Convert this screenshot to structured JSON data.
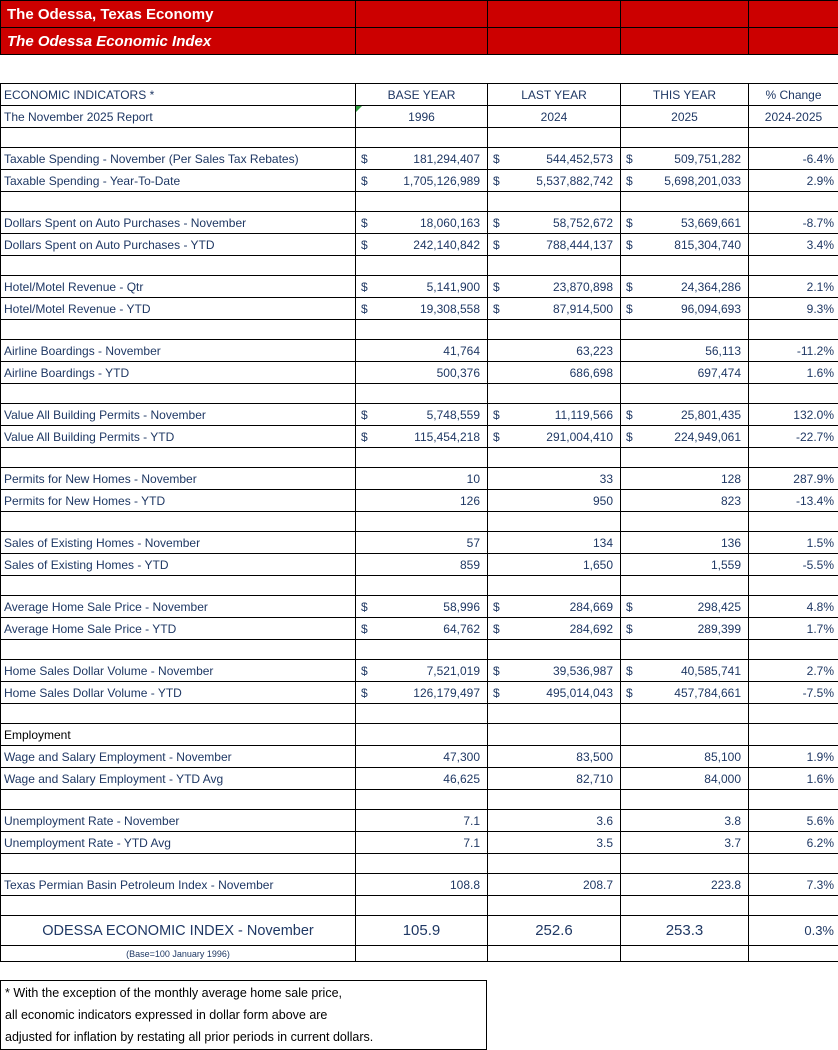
{
  "colors": {
    "text_navy": "#1F3864",
    "banner_red": "#CC0000",
    "border": "#000000"
  },
  "banner": {
    "title": "The Odessa, Texas Economy",
    "subtitle": "The Odessa Economic Index"
  },
  "header": {
    "indicators_label": "ECONOMIC INDICATORS *",
    "report_label": "The November 2025 Report",
    "year_columns": [
      {
        "label": "BASE YEAR",
        "year": "1996"
      },
      {
        "label": "LAST YEAR",
        "year": "2024"
      },
      {
        "label": "THIS YEAR",
        "year": "2025"
      },
      {
        "label": "% Change",
        "year": "2024-2025"
      }
    ]
  },
  "rows": [
    {
      "type": "spacer"
    },
    {
      "type": "data",
      "label": "Taxable Spending - November (Per Sales Tax Rebates)",
      "dollar": true,
      "base": "181,294,407",
      "last": "544,452,573",
      "this": "509,751,282",
      "change": "-6.4%"
    },
    {
      "type": "data",
      "label": "Taxable Spending - Year-To-Date",
      "dollar": true,
      "base": "1,705,126,989",
      "last": "5,537,882,742",
      "this": "5,698,201,033",
      "change": "2.9%"
    },
    {
      "type": "spacer"
    },
    {
      "type": "data",
      "label": "Dollars Spent on Auto Purchases - November",
      "dollar": true,
      "base": "18,060,163",
      "last": "58,752,672",
      "this": "53,669,661",
      "change": "-8.7%"
    },
    {
      "type": "data",
      "label": "Dollars Spent on Auto Purchases - YTD",
      "dollar": true,
      "base": "242,140,842",
      "last": "788,444,137",
      "this": "815,304,740",
      "change": "3.4%"
    },
    {
      "type": "spacer"
    },
    {
      "type": "data",
      "label": "Hotel/Motel Revenue - Qtr",
      "dollar": true,
      "base": "5,141,900",
      "last": "23,870,898",
      "this": "24,364,286",
      "change": "2.1%"
    },
    {
      "type": "data",
      "label": "Hotel/Motel Revenue - YTD",
      "dollar": true,
      "base": "19,308,558",
      "last": "87,914,500",
      "this": "96,094,693",
      "change": "9.3%"
    },
    {
      "type": "spacer"
    },
    {
      "type": "data",
      "label": "Airline Boardings - November",
      "dollar": false,
      "base": "41,764",
      "last": "63,223",
      "this": "56,113",
      "change": "-11.2%"
    },
    {
      "type": "data",
      "label": "Airline Boardings - YTD",
      "dollar": false,
      "base": "500,376",
      "last": "686,698",
      "this": "697,474",
      "change": "1.6%"
    },
    {
      "type": "spacer"
    },
    {
      "type": "data",
      "label": "Value All Building Permits - November",
      "dollar": true,
      "base": "5,748,559",
      "last": "11,119,566",
      "this": "25,801,435",
      "change": "132.0%"
    },
    {
      "type": "data",
      "label": "Value All Building Permits - YTD",
      "dollar": true,
      "base": "115,454,218",
      "last": "291,004,410",
      "this": "224,949,061",
      "change": "-22.7%"
    },
    {
      "type": "spacer"
    },
    {
      "type": "data",
      "label": "Permits for New Homes - November",
      "dollar": false,
      "base": "10",
      "last": "33",
      "this": "128",
      "change": "287.9%"
    },
    {
      "type": "data",
      "label": "Permits for New Homes - YTD",
      "dollar": false,
      "base": "126",
      "last": "950",
      "this": "823",
      "change": "-13.4%"
    },
    {
      "type": "spacer"
    },
    {
      "type": "data",
      "label": "Sales of Existing Homes - November",
      "dollar": false,
      "base": "57",
      "last": "134",
      "this": "136",
      "change": "1.5%"
    },
    {
      "type": "data",
      "label": "Sales of Existing Homes - YTD",
      "dollar": false,
      "base": "859",
      "last": "1,650",
      "this": "1,559",
      "change": "-5.5%"
    },
    {
      "type": "spacer"
    },
    {
      "type": "data",
      "label": "Average Home Sale Price - November",
      "dollar": true,
      "base": "58,996",
      "last": "284,669",
      "this": "298,425",
      "change": "4.8%"
    },
    {
      "type": "data",
      "label": "Average Home Sale Price - YTD",
      "dollar": true,
      "base": "64,762",
      "last": "284,692",
      "this": "289,399",
      "change": "1.7%"
    },
    {
      "type": "spacer"
    },
    {
      "type": "data",
      "label": "Home Sales Dollar Volume - November",
      "dollar": true,
      "base": "7,521,019",
      "last": "39,536,987",
      "this": "40,585,741",
      "change": "2.7%"
    },
    {
      "type": "data",
      "label": "Home Sales Dollar Volume - YTD",
      "dollar": true,
      "base": "126,179,497",
      "last": "495,014,043",
      "this": "457,784,661",
      "change": "-7.5%"
    },
    {
      "type": "spacer"
    },
    {
      "type": "section",
      "label": "Employment"
    },
    {
      "type": "data",
      "label": "Wage and Salary Employment - November",
      "dollar": false,
      "base": "47,300",
      "last": "83,500",
      "this": "85,100",
      "change": "1.9%"
    },
    {
      "type": "data",
      "label": "Wage and Salary Employment - YTD Avg",
      "dollar": false,
      "base": "46,625",
      "last": "82,710",
      "this": "84,000",
      "change": "1.6%"
    },
    {
      "type": "spacer"
    },
    {
      "type": "data",
      "label": "Unemployment Rate - November",
      "dollar": false,
      "base": "7.1",
      "last": "3.6",
      "this": "3.8",
      "change": "5.6%"
    },
    {
      "type": "data",
      "label": "Unemployment Rate - YTD Avg",
      "dollar": false,
      "base": "7.1",
      "last": "3.5",
      "this": "3.7",
      "change": "6.2%"
    },
    {
      "type": "spacer"
    },
    {
      "type": "data",
      "label": "Texas Permian Basin Petroleum Index - November",
      "dollar": false,
      "base": "108.8",
      "last": "208.7",
      "this": "223.8",
      "change": "7.3%"
    },
    {
      "type": "spacer"
    }
  ],
  "index_row": {
    "label": "ODESSA ECONOMIC INDEX - November",
    "note": "(Base=100 January 1996)",
    "base": "105.9",
    "last": "252.6",
    "this": "253.3",
    "change": "0.3%"
  },
  "footnote_lines": [
    "* With the exception of the monthly average home sale price,",
    "all economic indicators expressed in dollar form above are",
    "adjusted for inflation by restating all prior periods in current dollars."
  ]
}
